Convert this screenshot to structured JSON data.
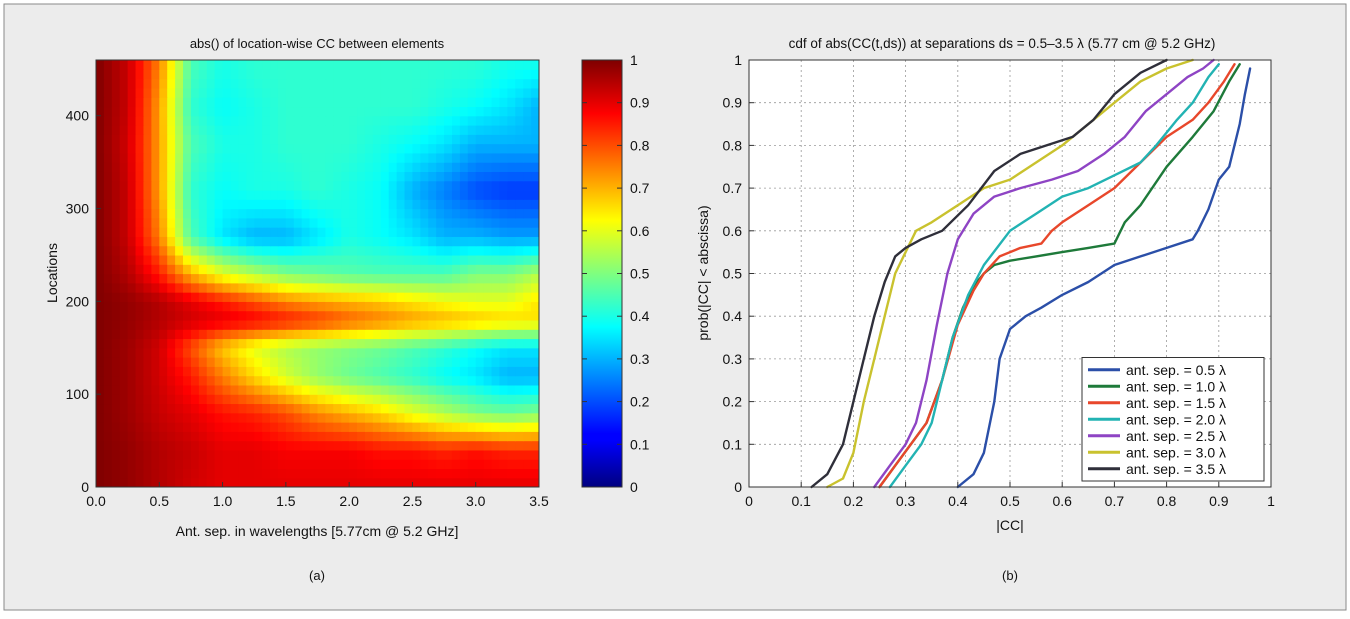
{
  "figure": {
    "background": "#ececec",
    "border": "#8a8a8a",
    "panel_a_label": "(a)",
    "panel_b_label": "(b)"
  },
  "chart_data": [
    {
      "type": "heatmap",
      "title": "abs() of location-wise CC between elements",
      "xlabel": "Ant. sep. in wavelengths [5.77cm @ 5.2 GHz]",
      "ylabel": "Locations",
      "xlim": [
        0,
        3.5
      ],
      "ylim": [
        0,
        460
      ],
      "xticks": [
        "0.0",
        "0.5",
        "1.0",
        "1.5",
        "2.0",
        "2.5",
        "3.0",
        "3.5"
      ],
      "yticks": [
        "0",
        "100",
        "200",
        "300",
        "400"
      ],
      "colorbar": {
        "range": [
          0,
          1
        ],
        "ticks": [
          "0",
          "0.1",
          "0.2",
          "0.3",
          "0.4",
          "0.5",
          "0.6",
          "0.7",
          "0.8",
          "0.9",
          "1"
        ],
        "colormap": "jet"
      },
      "x_samples": [
        0,
        0.25,
        0.5,
        0.75,
        1.0,
        1.25,
        1.5,
        1.75,
        2.0,
        2.25,
        2.5,
        2.75,
        3.0,
        3.25,
        3.5
      ],
      "rows": [
        {
          "location": 0,
          "values": [
            1.0,
            0.98,
            0.95,
            0.92,
            0.9,
            0.9,
            0.9,
            0.9,
            0.9,
            0.9,
            0.9,
            0.9,
            0.9,
            0.9,
            0.9
          ]
        },
        {
          "location": 40,
          "values": [
            1.0,
            0.98,
            0.95,
            0.93,
            0.9,
            0.9,
            0.88,
            0.88,
            0.88,
            0.86,
            0.86,
            0.84,
            0.86,
            0.84,
            0.84
          ]
        },
        {
          "location": 80,
          "values": [
            1.0,
            0.97,
            0.93,
            0.9,
            0.86,
            0.84,
            0.8,
            0.74,
            0.7,
            0.66,
            0.6,
            0.55,
            0.5,
            0.48,
            0.5
          ]
        },
        {
          "location": 120,
          "values": [
            1.0,
            0.97,
            0.92,
            0.85,
            0.75,
            0.66,
            0.58,
            0.52,
            0.48,
            0.45,
            0.42,
            0.38,
            0.35,
            0.3,
            0.3
          ]
        },
        {
          "location": 150,
          "values": [
            1.0,
            0.97,
            0.92,
            0.8,
            0.68,
            0.6,
            0.55,
            0.52,
            0.5,
            0.48,
            0.45,
            0.42,
            0.38,
            0.35,
            0.35
          ]
        },
        {
          "location": 180,
          "values": [
            1.0,
            0.98,
            0.95,
            0.92,
            0.9,
            0.88,
            0.85,
            0.82,
            0.78,
            0.75,
            0.72,
            0.7,
            0.68,
            0.66,
            0.65
          ]
        },
        {
          "location": 200,
          "values": [
            1.0,
            0.98,
            0.95,
            0.9,
            0.85,
            0.8,
            0.75,
            0.72,
            0.7,
            0.68,
            0.65,
            0.62,
            0.6,
            0.6,
            0.65
          ]
        },
        {
          "location": 230,
          "values": [
            1.0,
            0.95,
            0.85,
            0.7,
            0.6,
            0.55,
            0.5,
            0.48,
            0.46,
            0.45,
            0.45,
            0.45,
            0.5,
            0.5,
            0.55
          ]
        },
        {
          "location": 270,
          "values": [
            1.0,
            0.93,
            0.75,
            0.45,
            0.35,
            0.3,
            0.3,
            0.35,
            0.4,
            0.38,
            0.35,
            0.3,
            0.3,
            0.28,
            0.28
          ]
        },
        {
          "location": 320,
          "values": [
            1.0,
            0.93,
            0.72,
            0.42,
            0.38,
            0.4,
            0.4,
            0.42,
            0.4,
            0.38,
            0.3,
            0.25,
            0.2,
            0.18,
            0.18
          ]
        },
        {
          "location": 370,
          "values": [
            1.0,
            0.92,
            0.72,
            0.45,
            0.4,
            0.4,
            0.42,
            0.42,
            0.42,
            0.4,
            0.38,
            0.35,
            0.3,
            0.3,
            0.3
          ]
        },
        {
          "location": 410,
          "values": [
            1.0,
            0.93,
            0.72,
            0.42,
            0.38,
            0.4,
            0.42,
            0.42,
            0.42,
            0.42,
            0.42,
            0.4,
            0.38,
            0.35,
            0.3
          ]
        },
        {
          "location": 460,
          "values": [
            1.0,
            0.93,
            0.75,
            0.45,
            0.4,
            0.42,
            0.42,
            0.42,
            0.42,
            0.42,
            0.42,
            0.42,
            0.42,
            0.4,
            0.4
          ]
        }
      ]
    },
    {
      "type": "line",
      "title": "cdf of abs(CC(t,ds)) at separations ds = 0.5–3.5 λ (5.77 cm @ 5.2 GHz)",
      "xlabel": "|CC|",
      "ylabel": "prob(|CC| < abscissa)",
      "xlim": [
        0,
        1
      ],
      "ylim": [
        0,
        1
      ],
      "xticks": [
        "0",
        "0.1",
        "0.2",
        "0.3",
        "0.4",
        "0.5",
        "0.6",
        "0.7",
        "0.8",
        "0.9",
        "1"
      ],
      "yticks": [
        "0",
        "0.1",
        "0.2",
        "0.3",
        "0.4",
        "0.5",
        "0.6",
        "0.7",
        "0.8",
        "0.9",
        "1"
      ],
      "grid": true,
      "legend_position": "bottom-right",
      "series": [
        {
          "name": "ant. sep. = 0.5 λ",
          "color": "#2b4fa8",
          "x": [
            0.4,
            0.43,
            0.45,
            0.47,
            0.48,
            0.5,
            0.53,
            0.56,
            0.6,
            0.65,
            0.7,
            0.75,
            0.8,
            0.85,
            0.86,
            0.88,
            0.9,
            0.92,
            0.94,
            0.95,
            0.96
          ],
          "y": [
            0,
            0.03,
            0.08,
            0.2,
            0.3,
            0.37,
            0.4,
            0.42,
            0.45,
            0.48,
            0.52,
            0.54,
            0.56,
            0.58,
            0.6,
            0.65,
            0.72,
            0.75,
            0.85,
            0.92,
            0.98
          ]
        },
        {
          "name": "ant. sep. = 1.0 λ",
          "color": "#1e7a3a",
          "x": [
            0.25,
            0.28,
            0.31,
            0.34,
            0.37,
            0.39,
            0.41,
            0.43,
            0.45,
            0.47,
            0.5,
            0.55,
            0.6,
            0.65,
            0.7,
            0.72,
            0.75,
            0.8,
            0.85,
            0.89,
            0.92,
            0.94
          ],
          "y": [
            0,
            0.05,
            0.1,
            0.15,
            0.25,
            0.35,
            0.42,
            0.47,
            0.5,
            0.52,
            0.53,
            0.54,
            0.55,
            0.56,
            0.57,
            0.62,
            0.66,
            0.75,
            0.82,
            0.88,
            0.95,
            0.99
          ]
        },
        {
          "name": "ant. sep. = 1.5 λ",
          "color": "#e8472b",
          "x": [
            0.25,
            0.28,
            0.31,
            0.34,
            0.37,
            0.4,
            0.43,
            0.45,
            0.48,
            0.52,
            0.56,
            0.58,
            0.6,
            0.65,
            0.7,
            0.75,
            0.8,
            0.85,
            0.88,
            0.91,
            0.93
          ],
          "y": [
            0,
            0.05,
            0.1,
            0.15,
            0.25,
            0.38,
            0.46,
            0.5,
            0.54,
            0.56,
            0.57,
            0.6,
            0.62,
            0.66,
            0.7,
            0.76,
            0.82,
            0.86,
            0.9,
            0.95,
            0.99
          ]
        },
        {
          "name": "ant. sep. = 2.0 λ",
          "color": "#22b3b3",
          "x": [
            0.27,
            0.3,
            0.33,
            0.35,
            0.37,
            0.39,
            0.42,
            0.45,
            0.5,
            0.55,
            0.6,
            0.65,
            0.7,
            0.75,
            0.78,
            0.82,
            0.85,
            0.88,
            0.9
          ],
          "y": [
            0,
            0.05,
            0.1,
            0.15,
            0.25,
            0.35,
            0.45,
            0.52,
            0.6,
            0.64,
            0.68,
            0.7,
            0.73,
            0.76,
            0.8,
            0.86,
            0.9,
            0.96,
            0.99
          ]
        },
        {
          "name": "ant. sep. = 2.5 λ",
          "color": "#8e44c4",
          "x": [
            0.24,
            0.27,
            0.3,
            0.32,
            0.34,
            0.36,
            0.38,
            0.4,
            0.43,
            0.47,
            0.52,
            0.58,
            0.63,
            0.68,
            0.72,
            0.76,
            0.8,
            0.84,
            0.87,
            0.89
          ],
          "y": [
            0,
            0.05,
            0.1,
            0.15,
            0.25,
            0.38,
            0.5,
            0.58,
            0.64,
            0.68,
            0.7,
            0.72,
            0.74,
            0.78,
            0.82,
            0.88,
            0.92,
            0.96,
            0.98,
            1.0
          ]
        },
        {
          "name": "ant. sep. = 3.0 λ",
          "color": "#c9c22e",
          "x": [
            0.15,
            0.18,
            0.2,
            0.22,
            0.24,
            0.26,
            0.28,
            0.3,
            0.32,
            0.35,
            0.4,
            0.45,
            0.5,
            0.55,
            0.6,
            0.65,
            0.7,
            0.75,
            0.8,
            0.85
          ],
          "y": [
            0,
            0.02,
            0.08,
            0.2,
            0.3,
            0.4,
            0.5,
            0.55,
            0.6,
            0.62,
            0.66,
            0.7,
            0.72,
            0.76,
            0.8,
            0.85,
            0.9,
            0.95,
            0.98,
            1.0
          ]
        },
        {
          "name": "ant. sep. = 3.5 λ",
          "color": "#2f2f3a",
          "x": [
            0.12,
            0.15,
            0.18,
            0.2,
            0.22,
            0.24,
            0.26,
            0.28,
            0.3,
            0.33,
            0.37,
            0.42,
            0.47,
            0.52,
            0.57,
            0.62,
            0.66,
            0.7,
            0.75,
            0.8
          ],
          "y": [
            0,
            0.03,
            0.1,
            0.2,
            0.3,
            0.4,
            0.48,
            0.54,
            0.56,
            0.58,
            0.6,
            0.66,
            0.74,
            0.78,
            0.8,
            0.82,
            0.86,
            0.92,
            0.97,
            1.0
          ]
        }
      ]
    }
  ]
}
